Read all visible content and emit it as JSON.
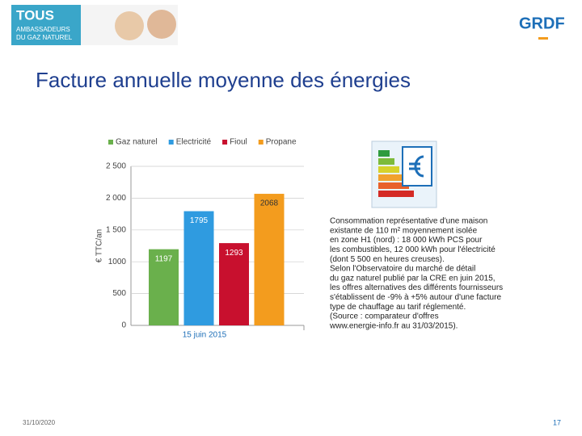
{
  "header": {
    "badge": [
      "TOUS",
      "AMBASSADEURS",
      "DU GAZ NATUREL"
    ],
    "logo": "GRDF"
  },
  "title": "Facture annuelle moyenne des énergies",
  "chart_data": {
    "type": "bar",
    "categories": [
      "15 juin 2015"
    ],
    "ylabel": "€ TTC/an",
    "series": [
      {
        "name": "Gaz naturel",
        "color": "#6ab04c",
        "values": [
          1197
        ]
      },
      {
        "name": "Electricité",
        "color": "#2f9be0",
        "values": [
          1795
        ]
      },
      {
        "name": "Fioul",
        "color": "#c8102e",
        "values": [
          1293
        ]
      },
      {
        "name": "Propane",
        "color": "#f39c1e",
        "values": [
          2068
        ]
      }
    ],
    "ylim": [
      0,
      2500
    ],
    "yticks": [
      0,
      500,
      1000,
      {
        "value": 1500,
        "label": "1 500"
      },
      {
        "value": 2000,
        "label": "2 000"
      },
      {
        "value": 2500,
        "label": "2 500"
      }
    ],
    "grid": true
  },
  "note": [
    "Consommation représentative d'une maison",
    "existante de 110 m² moyennement isolée",
    "en zone H1 (nord) : 18 000 kWh PCS pour",
    "les combustibles, 12 000 kWh pour l'électricité",
    "(dont 5 500 en heures creuses).",
    "Selon l'Observatoire du marché de détail",
    "du gaz naturel publié par la CRE en juin 2015,",
    "les offres alternatives des différents fournisseurs",
    "s'établissent de -9% à +5% autour d'une facture",
    "type de chauffage au tarif réglementé.",
    "(Source : comparateur d'offres",
    "www.energie-info.fr au 31/03/2015)."
  ],
  "footer": {
    "date": "31/10/2020",
    "page": "17"
  }
}
